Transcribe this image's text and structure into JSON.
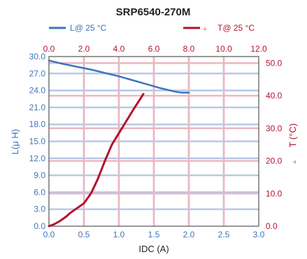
{
  "chart_data": {
    "type": "line",
    "title": "SRP6540-270M",
    "xlabel": "IDC (A)",
    "ylabel": "L(μ H)",
    "ylabel_right": "T (°C)",
    "ylabel_right_marker": "▵",
    "xlim": [
      0,
      3.0
    ],
    "ylim": [
      0,
      30
    ],
    "x_top_lim": [
      0,
      12
    ],
    "y_right_lim": [
      0,
      52
    ],
    "x_ticks": [
      "0.0",
      "0.5",
      "1.0",
      "1.5",
      "2.0",
      "2.5",
      "3.0"
    ],
    "x_top_ticks": [
      "0.0",
      "2.0",
      "4.0",
      "6.0",
      "8.0",
      "10.0",
      "12.0"
    ],
    "y_ticks": [
      "0.0",
      "3.0",
      "6.0",
      "9.0",
      "12.0",
      "15.0",
      "18.0",
      "21.0",
      "24.0",
      "27.0",
      "30.0"
    ],
    "y_right_ticks": [
      "0.0",
      "10.0",
      "20.0",
      "30.0",
      "40.0",
      "50.0"
    ],
    "y_right_tick_values": [
      0,
      10,
      20,
      30,
      40,
      50
    ],
    "grid": true,
    "legend_position": "top",
    "colors": {
      "inductance": "#3b75bd",
      "temperature": "#b3132f",
      "grid_blue": "#b9c8e8",
      "grid_red": "#ebb7bf",
      "axis": "#555555",
      "text": "#222222"
    },
    "series": [
      {
        "name": "L@ 25 °C",
        "axis": "bottom-left",
        "x": [
          0.0,
          0.2,
          0.4,
          0.6,
          0.8,
          1.0,
          1.2,
          1.4,
          1.6,
          1.8,
          1.9,
          2.0
        ],
        "y": [
          29.3,
          28.7,
          28.2,
          27.7,
          27.1,
          26.5,
          25.8,
          25.1,
          24.4,
          23.8,
          23.6,
          23.6
        ]
      },
      {
        "name": "T@ 25 °C",
        "marker": "▵",
        "axis": "top-right",
        "x": [
          0.0,
          0.3,
          0.6,
          1.0,
          1.2,
          1.6,
          2.0,
          2.4,
          2.8,
          3.2,
          3.6,
          4.0,
          4.4,
          4.8,
          5.1,
          5.4
        ],
        "y": [
          0.0,
          0.6,
          1.5,
          3.0,
          4.0,
          5.5,
          7.0,
          10.0,
          14.5,
          20.0,
          25.0,
          28.5,
          32.0,
          35.5,
          38.0,
          40.5
        ]
      }
    ]
  }
}
